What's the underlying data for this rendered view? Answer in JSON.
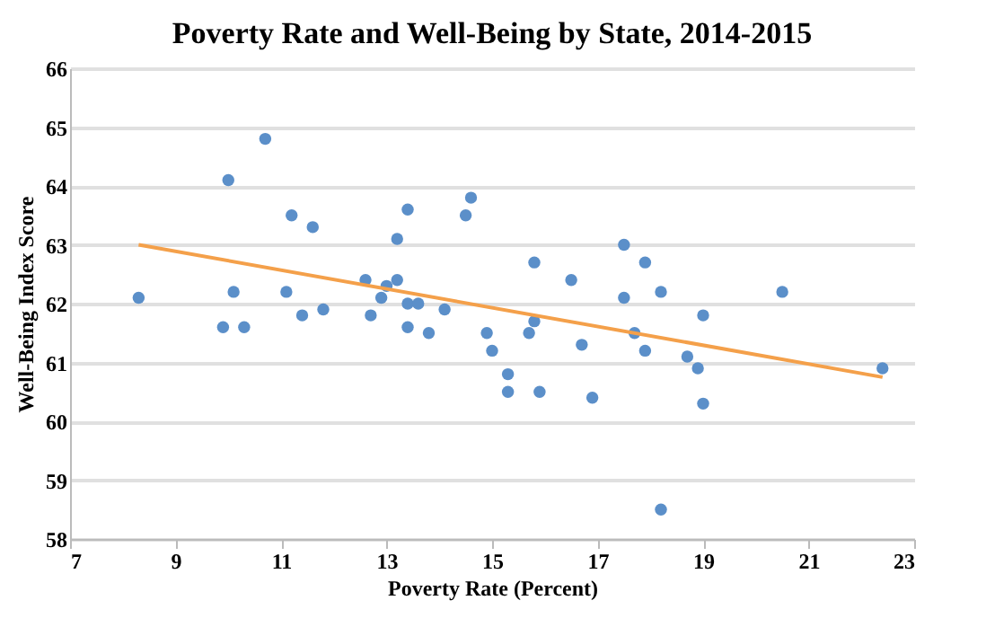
{
  "chart_data": {
    "type": "scatter",
    "title": "Poverty Rate and Well-Being by State, 2014-2015",
    "xlabel": "Poverty Rate (Percent)",
    "ylabel": "Well-Being Index Score",
    "xlim": [
      7,
      23
    ],
    "xticks": [
      7,
      9,
      11,
      13,
      15,
      17,
      19,
      21,
      23
    ],
    "ylim": [
      58,
      66
    ],
    "yticks": [
      58,
      59,
      60,
      61,
      62,
      63,
      64,
      65,
      66
    ],
    "grid": "y",
    "series": [
      {
        "color": "#5b8fc9",
        "marker": "circle",
        "x": [
          8.3,
          9.9,
          10.0,
          10.1,
          10.3,
          10.7,
          11.1,
          11.2,
          11.4,
          11.6,
          11.8,
          12.6,
          12.7,
          12.9,
          13.0,
          13.2,
          13.2,
          13.4,
          13.4,
          13.4,
          13.6,
          13.8,
          14.1,
          14.5,
          14.6,
          14.9,
          15.0,
          15.3,
          15.3,
          15.7,
          15.8,
          15.8,
          15.9,
          16.5,
          16.7,
          16.9,
          17.5,
          17.5,
          17.7,
          17.9,
          17.9,
          18.2,
          18.2,
          18.7,
          18.9,
          19.0,
          19.0,
          20.5,
          22.4
        ],
        "values": [
          62.1,
          61.6,
          64.1,
          62.2,
          61.6,
          64.8,
          62.2,
          63.5,
          61.8,
          63.3,
          61.9,
          62.4,
          61.8,
          62.1,
          62.3,
          63.1,
          62.4,
          63.6,
          62.0,
          61.6,
          62.0,
          61.5,
          61.9,
          63.5,
          63.8,
          61.5,
          61.2,
          60.8,
          60.5,
          61.5,
          62.7,
          61.7,
          60.5,
          62.4,
          61.3,
          60.4,
          63.0,
          62.1,
          61.5,
          62.7,
          61.2,
          62.2,
          58.5,
          61.1,
          60.9,
          60.3,
          61.8,
          62.2,
          60.9
        ]
      },
      {
        "type": "line",
        "color": "#f4a04a",
        "x": [
          8.3,
          22.4
        ],
        "values": [
          63.0,
          60.75
        ]
      }
    ]
  }
}
